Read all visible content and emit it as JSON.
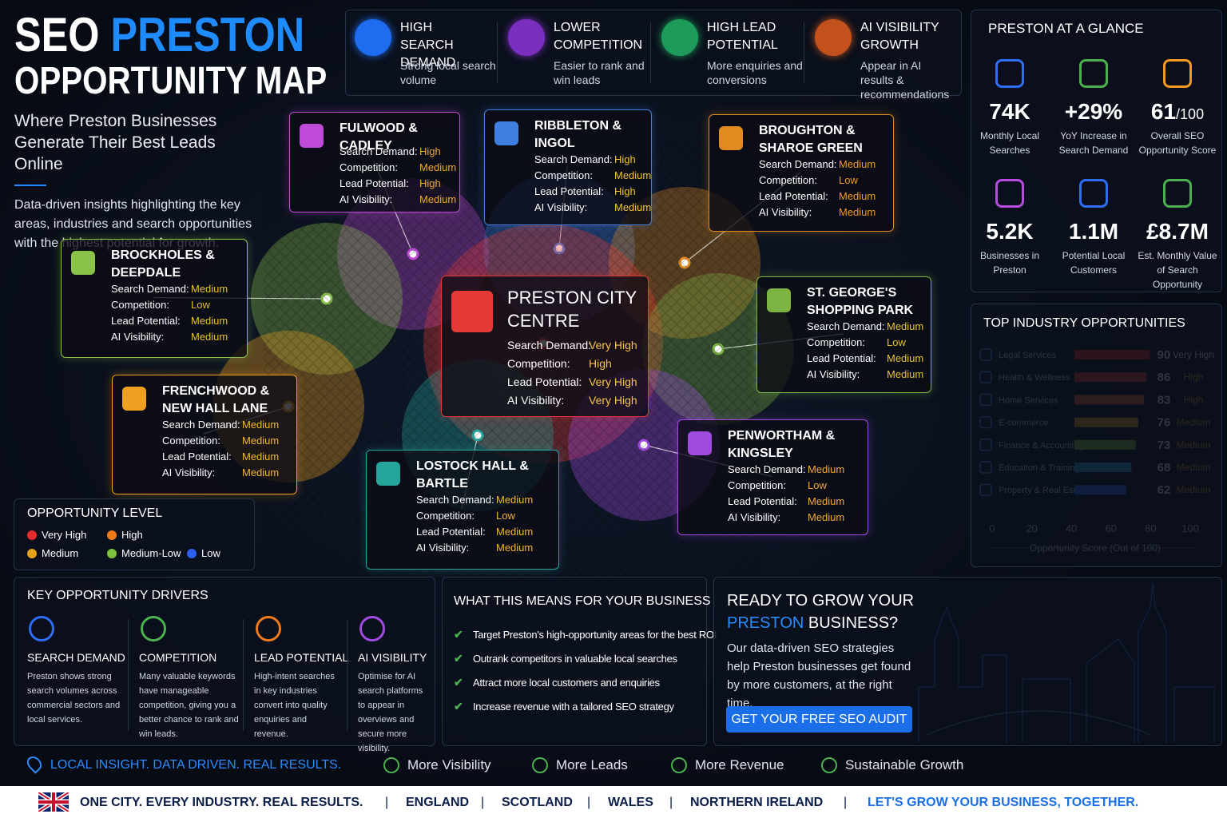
{
  "header": {
    "title_seo": "SEO",
    "title_city": "PRESTON",
    "title_line2": "OPPORTUNITY MAP",
    "subtitle": "Where Preston Businesses Generate Their Best Leads Online",
    "description": "Data-driven insights highlighting the key areas, industries and search opportunities with the highest potential for growth."
  },
  "benefits": [
    {
      "title": "HIGH SEARCH DEMAND",
      "text": "Strong local search volume",
      "color": "#1e6cf0"
    },
    {
      "title": "LOWER COMPETITION",
      "text": "Easier to rank and win leads",
      "color": "#7b2fbf"
    },
    {
      "title": "HIGH LEAD POTENTIAL",
      "text": "More enquiries and conversions",
      "color": "#1e9b5a"
    },
    {
      "title": "AI VISIBILITY GROWTH",
      "text": "Appear in AI results & recommendations",
      "color": "#c2511e"
    }
  ],
  "glance": {
    "title": "PRESTON AT A GLANCE",
    "stats": [
      {
        "value": "74K",
        "label": "Monthly Local Searches",
        "color": "#2f6df5"
      },
      {
        "value": "+29%",
        "label": "YoY Increase in Search Demand",
        "color": "#4caf50"
      },
      {
        "value": "61",
        "suffix": "/100",
        "label": "Overall SEO Opportunity Score",
        "color": "#f29b1d"
      },
      {
        "value": "5.2K",
        "label": "Businesses in Preston",
        "color": "#b84be0"
      },
      {
        "value": "1.1M",
        "label": "Potential Local Customers",
        "color": "#2f6df5"
      },
      {
        "value": "£8.7M",
        "label": "Est. Monthly Value of Search Opportunity",
        "color": "#4caf50"
      }
    ]
  },
  "areas": [
    {
      "name": "FULWOOD & CADLEY",
      "color": "#c04bd8",
      "value_color": "#f0a830",
      "rows": [
        {
          "label": "Search Demand:",
          "value": "High"
        },
        {
          "label": "Competition:",
          "value": "Medium"
        },
        {
          "label": "Lead Potential:",
          "value": "High"
        },
        {
          "label": "AI Visibility:",
          "value": "Medium"
        }
      ]
    },
    {
      "name": "RIBBLETON & INGOL",
      "color": "#3f7fe0",
      "value_color": "#f2c230",
      "rows": [
        {
          "label": "Search Demand:",
          "value": "High"
        },
        {
          "label": "Competition:",
          "value": "Medium"
        },
        {
          "label": "Lead Potential:",
          "value": "High"
        },
        {
          "label": "AI Visibility:",
          "value": "Medium"
        }
      ]
    },
    {
      "name": "BROUGHTON & SHAROE GREEN",
      "color": "#e08a20",
      "value_color": "#f29b1d",
      "rows": [
        {
          "label": "Search Demand:",
          "value": "Medium"
        },
        {
          "label": "Competition:",
          "value": "Low"
        },
        {
          "label": "Lead Potential:",
          "value": "Medium"
        },
        {
          "label": "AI Visibility:",
          "value": "Medium"
        }
      ]
    },
    {
      "name": "BROCKHOLES & DEEPDALE",
      "color": "#8bc34a",
      "value_color": "#e5c22a",
      "rows": [
        {
          "label": "Search Demand:",
          "value": "Medium"
        },
        {
          "label": "Competition:",
          "value": "Low"
        },
        {
          "label": "Lead Potential:",
          "value": "Medium"
        },
        {
          "label": "AI Visibility:",
          "value": "Medium"
        }
      ]
    },
    {
      "name": "PRESTON CITY CENTRE",
      "color": "#e53935",
      "value_color": "#f5c542",
      "rows": [
        {
          "label": "Search Demand:",
          "value": "Very High"
        },
        {
          "label": "Competition:",
          "value": "High"
        },
        {
          "label": "Lead Potential:",
          "value": "Very High"
        },
        {
          "label": "AI Visibility:",
          "value": "Very High"
        }
      ]
    },
    {
      "name": "ST. GEORGE'S SHOPPING PARK",
      "color": "#7cb342",
      "value_color": "#e5c22a",
      "rows": [
        {
          "label": "Search Demand:",
          "value": "Medium"
        },
        {
          "label": "Competition:",
          "value": "Low"
        },
        {
          "label": "Lead Potential:",
          "value": "Medium"
        },
        {
          "label": "AI Visibility:",
          "value": "Medium"
        }
      ]
    },
    {
      "name": "FRENCHWOOD & NEW HALL LANE",
      "color": "#f0a020",
      "value_color": "#f2b630",
      "rows": [
        {
          "label": "Search Demand:",
          "value": "Medium"
        },
        {
          "label": "Competition:",
          "value": "Medium"
        },
        {
          "label": "Lead Potential:",
          "value": "Medium"
        },
        {
          "label": "AI Visibility:",
          "value": "Medium"
        }
      ]
    },
    {
      "name": "PENWORTHAM & KINGSLEY",
      "color": "#a04be0",
      "value_color": "#f0a830",
      "rows": [
        {
          "label": "Search Demand:",
          "value": "Medium"
        },
        {
          "label": "Competition:",
          "value": "Low"
        },
        {
          "label": "Lead Potential:",
          "value": "Medium"
        },
        {
          "label": "AI Visibility:",
          "value": "Medium"
        }
      ]
    },
    {
      "name": "LOSTOCK HALL & BARTLE",
      "color": "#26a69a",
      "value_color": "#f2b630",
      "rows": [
        {
          "label": "Search Demand:",
          "value": "Medium"
        },
        {
          "label": "Competition:",
          "value": "Low"
        },
        {
          "label": "Lead Potential:",
          "value": "Medium"
        },
        {
          "label": "AI Visibility:",
          "value": "Medium"
        }
      ]
    }
  ],
  "legend": {
    "title": "OPPORTUNITY LEVEL",
    "items": [
      {
        "label": "Very High",
        "color": "#e52b2b"
      },
      {
        "label": "High",
        "color": "#f07a1a"
      },
      {
        "label": "Medium",
        "color": "#e5a11a"
      },
      {
        "label": "Medium-Low",
        "color": "#7cc13a"
      },
      {
        "label": "Low",
        "color": "#2f5df0"
      }
    ]
  },
  "chart_data": {
    "type": "bar",
    "orientation": "horizontal",
    "title": "TOP INDUSTRY OPPORTUNITIES",
    "categories": [
      "Legal Services",
      "Health & Wellness",
      "Home Services",
      "E-commerce",
      "Finance & Accounting",
      "Education & Training",
      "Property & Real Estate"
    ],
    "values": [
      90,
      86,
      83,
      76,
      73,
      68,
      62
    ],
    "ratings": [
      "Very High",
      "High",
      "High",
      "Medium",
      "Medium",
      "Medium",
      "Medium"
    ],
    "colors": [
      "#e62b2b",
      "#ec3b2e",
      "#f0602a",
      "#f2a21e",
      "#8cc43a",
      "#2aa7d8",
      "#2c6cf0"
    ],
    "xlim": [
      0,
      100
    ],
    "xticks": [
      0,
      20,
      40,
      60,
      80,
      100
    ],
    "xlabel": "Opportunity Score (Out of 100)"
  },
  "drivers": {
    "title": "KEY OPPORTUNITY DRIVERS",
    "items": [
      {
        "title": "SEARCH DEMAND",
        "text": "Preston shows strong search volumes across commercial sectors and local services.",
        "color": "#2f6df5"
      },
      {
        "title": "COMPETITION",
        "text": "Many valuable keywords have manageable competition, giving you a better chance to rank and win leads.",
        "color": "#4caf50"
      },
      {
        "title": "LEAD POTENTIAL",
        "text": "High-intent searches in key industries convert into quality enquiries and revenue.",
        "color": "#f07a1a"
      },
      {
        "title": "AI VISIBILITY",
        "text": "Optimise for AI search platforms to appear in overviews and secure more visibility.",
        "color": "#a04be0"
      }
    ]
  },
  "means": {
    "title": "WHAT THIS MEANS FOR YOUR BUSINESS",
    "items": [
      "Target Preston's high-opportunity areas for the best ROI",
      "Outrank competitors in valuable local searches",
      "Attract more local customers and enquiries",
      "Increase revenue with a tailored SEO strategy"
    ]
  },
  "cta": {
    "title_line1": "READY TO GROW YOUR",
    "title_city": "PRESTON",
    "title_rest": "BUSINESS?",
    "text": "Our data-driven SEO strategies help Preston businesses get found by more customers, at the right time.",
    "button": "GET YOUR FREE SEO AUDIT"
  },
  "footer": {
    "tagline": "LOCAL INSIGHT. DATA DRIVEN. REAL RESULTS.",
    "items": [
      "More Visibility",
      "More Leads",
      "More Revenue",
      "Sustainable Growth"
    ]
  },
  "bottom_bar": {
    "slogan": "ONE CITY. EVERY INDUSTRY. REAL RESULTS.",
    "nations": [
      "ENGLAND",
      "SCOTLAND",
      "WALES",
      "NORTHERN IRELAND"
    ],
    "closing": "LET'S GROW YOUR BUSINESS, TOGETHER."
  }
}
